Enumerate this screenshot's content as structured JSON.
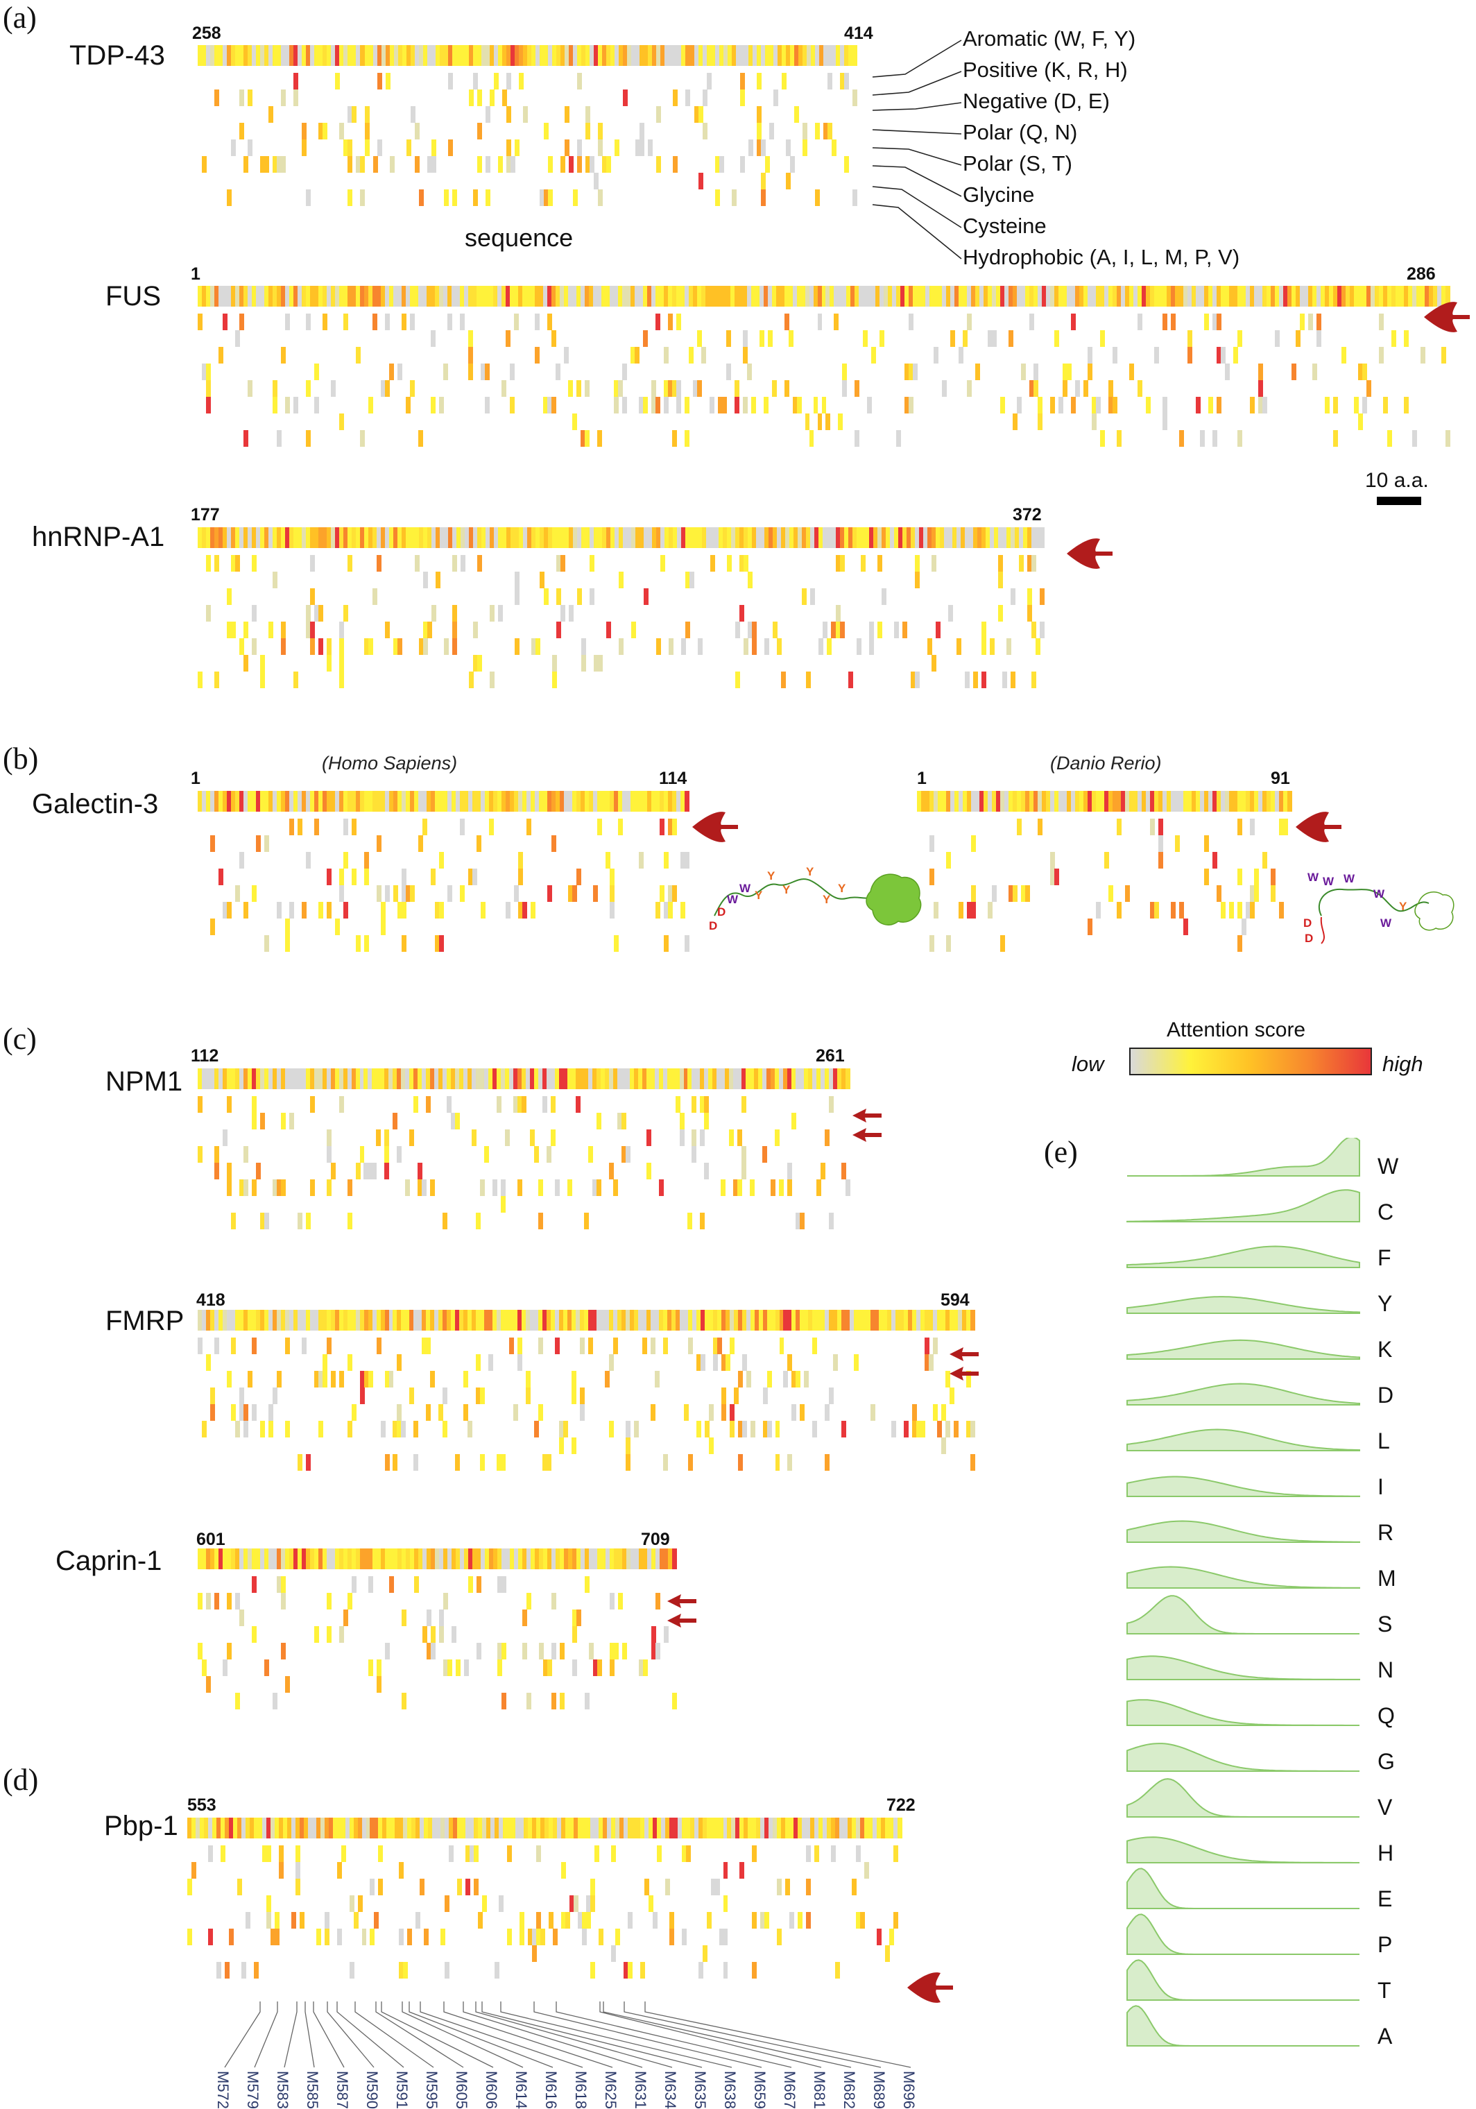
{
  "panels": {
    "a": "(a)",
    "b": "(b)",
    "c": "(c)",
    "d": "(d)",
    "e": "(e)"
  },
  "categories": [
    "Aromatic (W, F, Y)",
    "Positive (K, R, H)",
    "Negative (D, E)",
    "Polar (Q, N)",
    "Polar (S, T)",
    "Glycine",
    "Cysteine",
    "Hydrophobic (A, I, L, M, P, V)"
  ],
  "sequence_label": "sequence",
  "scale_label": "10 a.a.",
  "proteins": [
    {
      "id": "tdp43",
      "name": "TDP-43",
      "start": "258",
      "end": "414"
    },
    {
      "id": "fus",
      "name": "FUS",
      "start": "1",
      "end": "286"
    },
    {
      "id": "hnrnp",
      "name": "hnRNP-A1",
      "start": "177",
      "end": "372"
    },
    {
      "id": "gal_h",
      "name": "Galectin-3",
      "start": "1",
      "end": "114",
      "species": "(Homo Sapiens)"
    },
    {
      "id": "gal_d",
      "name": "",
      "start": "1",
      "end": "91",
      "species": "(Danio Rerio)"
    },
    {
      "id": "npm1",
      "name": "NPM1",
      "start": "112",
      "end": "261"
    },
    {
      "id": "fmrp",
      "name": "FMRP",
      "start": "418",
      "end": "594"
    },
    {
      "id": "caprin",
      "name": "Caprin-1",
      "start": "601",
      "end": "709"
    },
    {
      "id": "pbp1",
      "name": "Pbp-1",
      "start": "553",
      "end": "722"
    }
  ],
  "galectin_cartoon": {
    "human_letters": [
      "D",
      "D",
      "W",
      "W",
      "Y",
      "Y",
      "Y",
      "Y",
      "Y",
      "Y"
    ],
    "zebrafish_letters": [
      "D",
      "D",
      "W",
      "W",
      "W",
      "W",
      "W",
      "Y"
    ]
  },
  "colorbar": {
    "title": "Attention score",
    "low": "low",
    "high": "high",
    "colors": [
      "#d9d9d9",
      "#fff23a",
      "#ffc125",
      "#f7852e",
      "#e8373a"
    ]
  },
  "pbp1_mutations": [
    "M572",
    "M579",
    "M583",
    "M585",
    "M587",
    "M590",
    "M591",
    "M595",
    "M605",
    "M606",
    "M614",
    "M616",
    "M618",
    "M625",
    "M631",
    "M634",
    "M635",
    "M638",
    "M659",
    "M667",
    "M681",
    "M682",
    "M689",
    "M696"
  ],
  "chart_data": {
    "type": "area",
    "title": "",
    "xlabel": "",
    "ylabel": "",
    "residues": [
      "W",
      "C",
      "F",
      "Y",
      "K",
      "D",
      "L",
      "I",
      "R",
      "M",
      "S",
      "N",
      "Q",
      "G",
      "V",
      "H",
      "E",
      "P",
      "T",
      "A"
    ],
    "peak_position": [
      0.97,
      0.95,
      0.65,
      0.42,
      0.5,
      0.5,
      0.4,
      0.22,
      0.25,
      0.2,
      0.2,
      0.12,
      0.08,
      0.15,
      0.18,
      0.12,
      0.06,
      0.06,
      0.05,
      0.04
    ],
    "peak_height": [
      0.95,
      0.7,
      0.45,
      0.35,
      0.4,
      0.45,
      0.45,
      0.42,
      0.45,
      0.45,
      0.9,
      0.5,
      0.55,
      0.6,
      0.9,
      0.55,
      1.0,
      1.0,
      1.0,
      1.0
    ],
    "color": "#a9d88b"
  }
}
